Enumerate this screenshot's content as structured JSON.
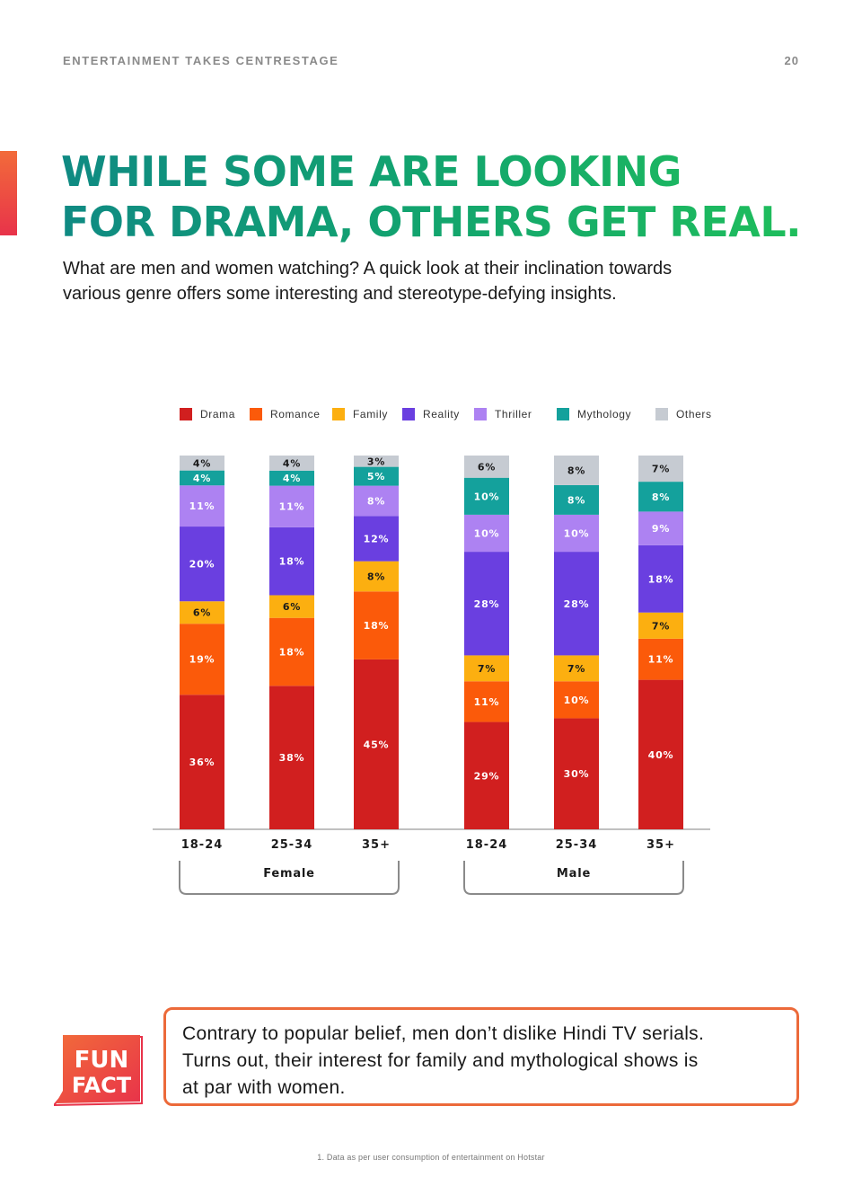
{
  "header": {
    "section": "ENTERTAINMENT TAKES CENTRESTAGE",
    "page_number": "20"
  },
  "headline": {
    "line1": "WHILE SOME ARE LOOKING",
    "line2": "FOR DRAMA, OTHERS GET REAL."
  },
  "intro": {
    "line1": "What are men and women watching? A quick look at their inclination towards",
    "line2": "various genre offers some interesting and stereotype-defying insights."
  },
  "chart_data": {
    "type": "bar",
    "stacked": true,
    "orientation": "vertical",
    "categories": [
      "18-24",
      "25-34",
      "35+",
      "18-24",
      "25-34",
      "35+"
    ],
    "groups": [
      {
        "label": "Female",
        "categories": [
          0,
          1,
          2
        ]
      },
      {
        "label": "Male",
        "categories": [
          3,
          4,
          5
        ]
      }
    ],
    "series": [
      {
        "name": "Drama",
        "color": "#d11f1f",
        "values": [
          36,
          38,
          45,
          29,
          30,
          40
        ]
      },
      {
        "name": "Romance",
        "color": "#fb5a0a",
        "values": [
          19,
          18,
          18,
          11,
          10,
          11
        ]
      },
      {
        "name": "Family",
        "color": "#fcaf10",
        "values": [
          6,
          6,
          8,
          7,
          7,
          7
        ]
      },
      {
        "name": "Reality",
        "color": "#6a3fe0",
        "values": [
          20,
          18,
          12,
          28,
          28,
          18
        ]
      },
      {
        "name": "Thriller",
        "color": "#ad82f2",
        "values": [
          11,
          11,
          8,
          10,
          10,
          9
        ]
      },
      {
        "name": "Mythology",
        "color": "#14a19c",
        "values": [
          4,
          4,
          5,
          10,
          8,
          8
        ]
      },
      {
        "name": "Others",
        "color": "#c6cbd2",
        "values": [
          4,
          4,
          3,
          6,
          8,
          7
        ]
      }
    ],
    "value_suffix": "%",
    "legend": "top",
    "grid": false
  },
  "funfact": {
    "badge_line1": "FUN",
    "badge_line2": "FACT",
    "line1": "Contrary to popular belief, men don’t dislike Hindi TV serials.",
    "line2": "Turns out, their interest for family and mythological shows is",
    "line3": "at par with women."
  },
  "footnote": "1.  Data as per user consumption of entertainment on Hotstar"
}
